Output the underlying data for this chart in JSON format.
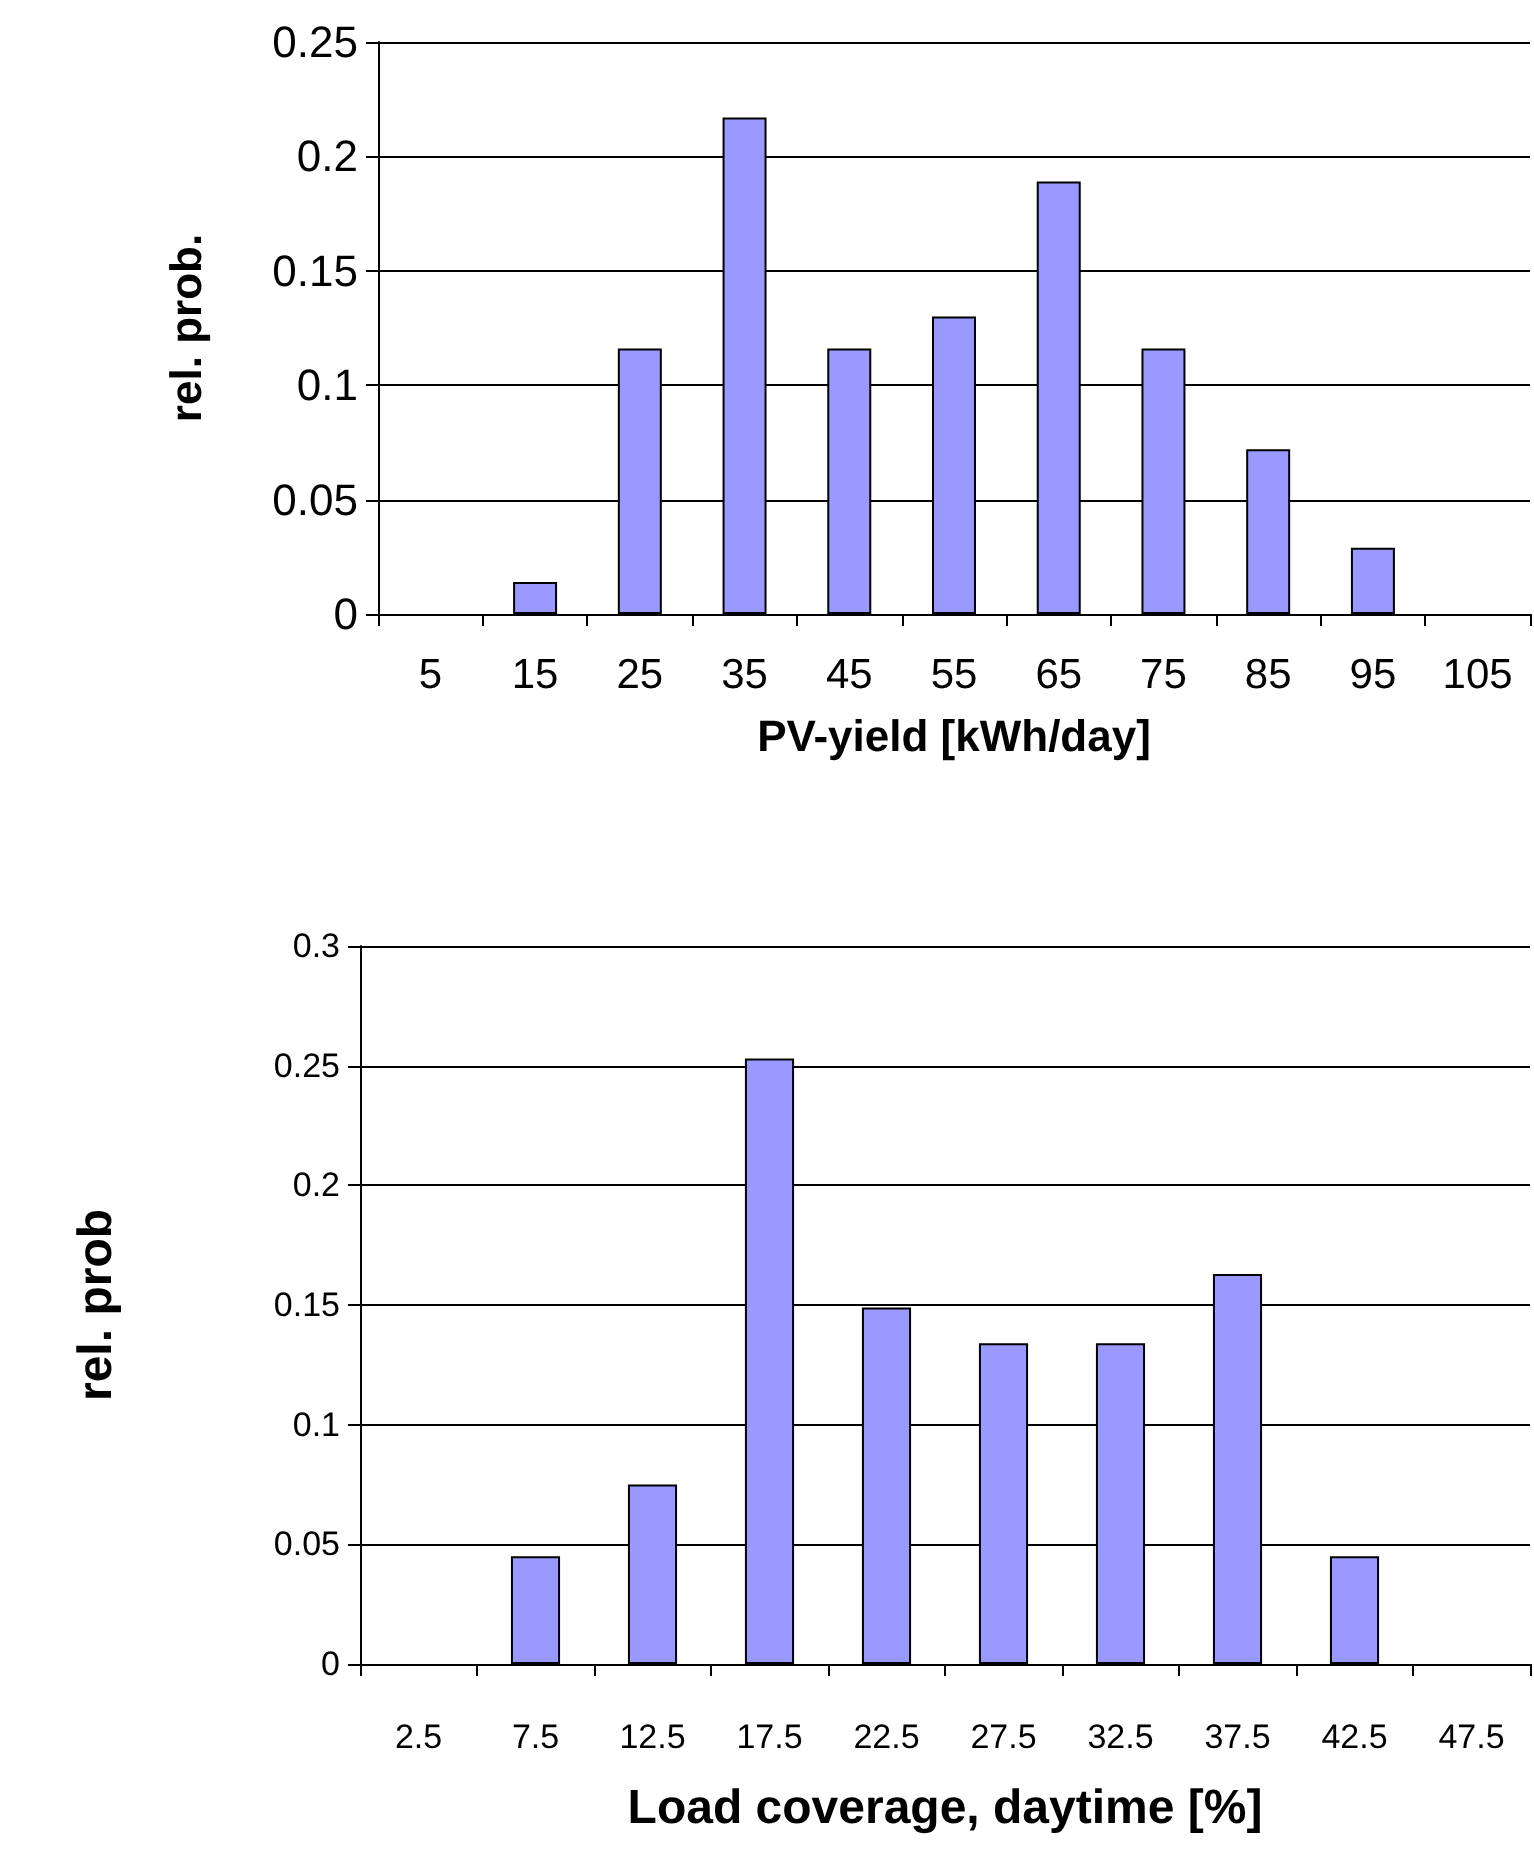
{
  "chart_data": [
    {
      "type": "bar",
      "xlabel": "PV-yield [kWh/day]",
      "ylabel": "rel. prob.",
      "categories": [
        "5",
        "15",
        "25",
        "35",
        "45",
        "55",
        "65",
        "75",
        "85",
        "95",
        "105"
      ],
      "values": [
        0,
        0.014,
        0.116,
        0.217,
        0.116,
        0.13,
        0.189,
        0.116,
        0.072,
        0.029,
        0
      ],
      "color": "#9999ff",
      "ylim": [
        0,
        0.25
      ],
      "yticks": [
        0,
        0.05,
        0.1,
        0.15,
        0.2,
        0.25
      ],
      "grid": "y"
    },
    {
      "type": "bar",
      "xlabel": "Load coverage, daytime [%]",
      "ylabel": "rel. prob",
      "categories": [
        "2.5",
        "7.5",
        "12.5",
        "17.5",
        "22.5",
        "27.5",
        "32.5",
        "37.5",
        "42.5",
        "47.5"
      ],
      "values": [
        0,
        0.045,
        0.075,
        0.253,
        0.149,
        0.134,
        0.134,
        0.163,
        0.045,
        0
      ],
      "color": "#9999ff",
      "ylim": [
        0,
        0.3
      ],
      "yticks": [
        0,
        0.05,
        0.1,
        0.15,
        0.2,
        0.25,
        0.3
      ],
      "grid": "y"
    }
  ]
}
